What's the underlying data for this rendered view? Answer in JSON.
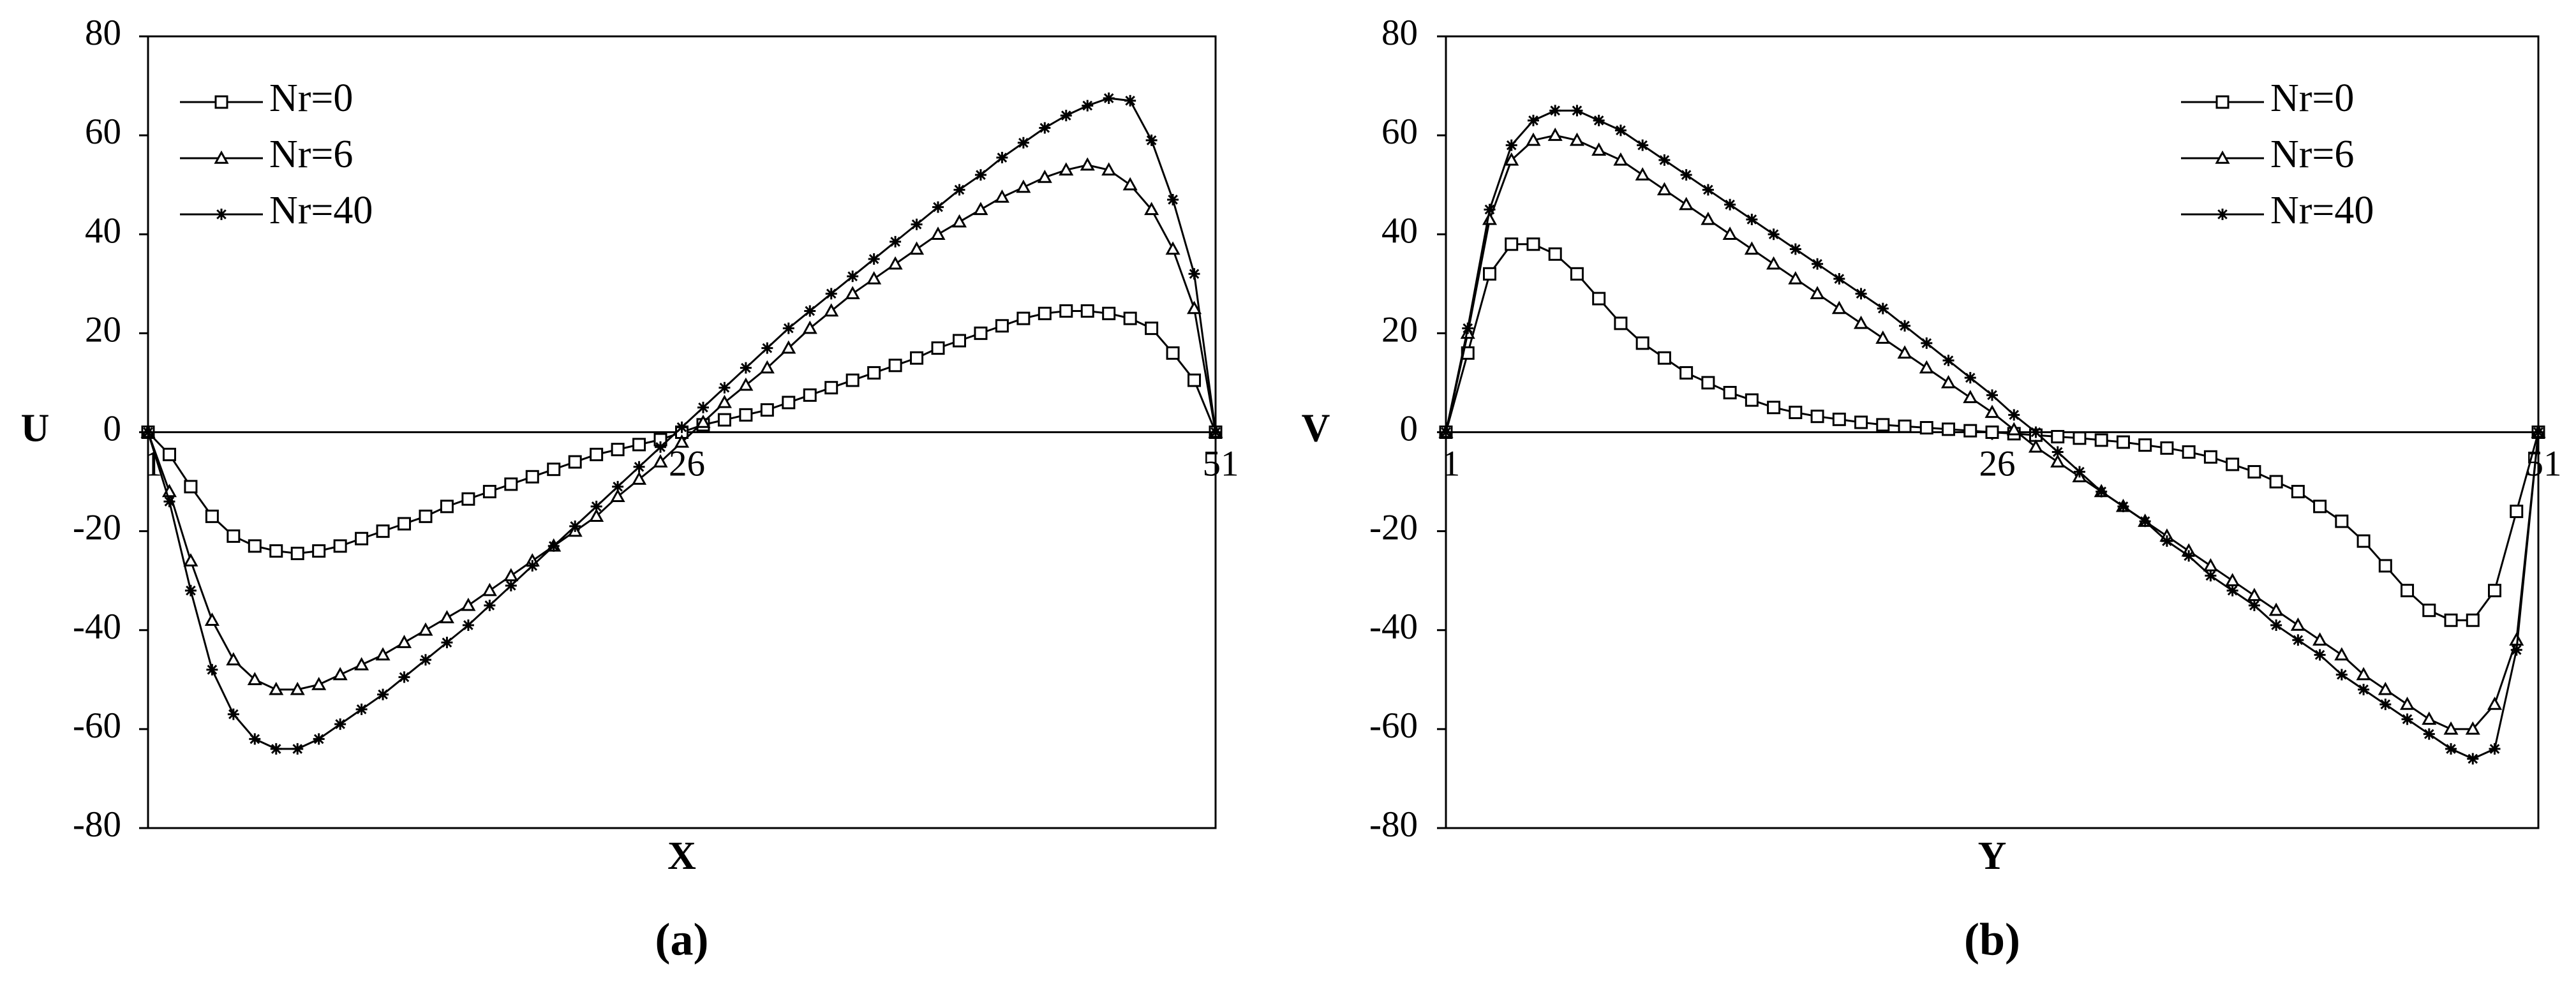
{
  "chart_data": [
    {
      "type": "line",
      "y_label": "U",
      "x_label": "X",
      "caption": "(a)",
      "x": [
        1,
        2,
        3,
        4,
        5,
        6,
        7,
        8,
        9,
        10,
        11,
        12,
        13,
        14,
        15,
        16,
        17,
        18,
        19,
        20,
        21,
        22,
        23,
        24,
        25,
        26,
        27,
        28,
        29,
        30,
        31,
        32,
        33,
        34,
        35,
        36,
        37,
        38,
        39,
        40,
        41,
        42,
        43,
        44,
        45,
        46,
        47,
        48,
        49,
        50,
        51
      ],
      "xlim": [
        1,
        51
      ],
      "xticks": [
        1,
        26,
        51
      ],
      "ylim": [
        -80,
        80
      ],
      "yticks": [
        -80,
        -60,
        -40,
        -20,
        0,
        20,
        40,
        60,
        80
      ],
      "legend": "upper left",
      "series": [
        {
          "name": "Nr=0",
          "color": "#000000",
          "marker": "square",
          "values": [
            0,
            -4.5,
            -11,
            -17,
            -21,
            -23,
            -24,
            -24.5,
            -24,
            -23,
            -21.5,
            -20,
            -18.5,
            -17,
            -15,
            -13.5,
            -12,
            -10.5,
            -9,
            -7.5,
            -6,
            -4.5,
            -3.5,
            -2.5,
            -1.5,
            0,
            1.5,
            2.5,
            3.5,
            4.5,
            6,
            7.5,
            9,
            10.5,
            12,
            13.5,
            15,
            17,
            18.5,
            20,
            21.5,
            23,
            24,
            24.5,
            24.5,
            24,
            23,
            21,
            16,
            10.5,
            0
          ]
        },
        {
          "name": "Nr=6",
          "color": "#000000",
          "marker": "triangle",
          "values": [
            0,
            -12,
            -26,
            -38,
            -46,
            -50,
            -52,
            -52,
            -51,
            -49,
            -47,
            -45,
            -42.5,
            -40,
            -37.5,
            -35,
            -32,
            -29,
            -26,
            -23,
            -20,
            -17,
            -13,
            -9.5,
            -6,
            -2,
            2,
            6,
            9.5,
            13,
            17,
            21,
            24.5,
            28,
            31,
            34,
            37,
            40,
            42.5,
            45,
            47.5,
            49.5,
            51.5,
            53,
            54,
            53,
            50,
            45,
            37,
            25,
            0
          ]
        },
        {
          "name": "Nr=40",
          "color": "#000000",
          "marker": "asterisk",
          "values": [
            0,
            -14,
            -32,
            -48,
            -57,
            -62,
            -64,
            -64,
            -62,
            -59,
            -56,
            -53,
            -49.5,
            -46,
            -42.5,
            -39,
            -35,
            -31,
            -27,
            -23,
            -19,
            -15,
            -11,
            -7,
            -3,
            1,
            5,
            9,
            13,
            17,
            21,
            24.5,
            28,
            31.5,
            35,
            38.5,
            42,
            45.5,
            49,
            52,
            55.5,
            58.5,
            61.5,
            64,
            66,
            67.5,
            67,
            59,
            47,
            32,
            0
          ]
        }
      ]
    },
    {
      "type": "line",
      "y_label": "V",
      "x_label": "Y",
      "caption": "(b)",
      "x": [
        1,
        2,
        3,
        4,
        5,
        6,
        7,
        8,
        9,
        10,
        11,
        12,
        13,
        14,
        15,
        16,
        17,
        18,
        19,
        20,
        21,
        22,
        23,
        24,
        25,
        26,
        27,
        28,
        29,
        30,
        31,
        32,
        33,
        34,
        35,
        36,
        37,
        38,
        39,
        40,
        41,
        42,
        43,
        44,
        45,
        46,
        47,
        48,
        49,
        50,
        51
      ],
      "xlim": [
        1,
        51
      ],
      "xticks": [
        1,
        26,
        51
      ],
      "ylim": [
        -80,
        80
      ],
      "yticks": [
        -80,
        -60,
        -40,
        -20,
        0,
        20,
        40,
        60,
        80
      ],
      "legend": "upper right",
      "series": [
        {
          "name": "Nr=0",
          "color": "#000000",
          "marker": "square",
          "values": [
            0,
            16,
            32,
            38,
            38,
            36,
            32,
            27,
            22,
            18,
            15,
            12,
            10,
            8,
            6.5,
            5,
            4,
            3.2,
            2.6,
            2,
            1.5,
            1.2,
            0.9,
            0.6,
            0.3,
            0,
            -0.3,
            -0.6,
            -0.9,
            -1.2,
            -1.6,
            -2,
            -2.6,
            -3.2,
            -4,
            -5,
            -6.5,
            -8,
            -10,
            -12,
            -15,
            -18,
            -22,
            -27,
            -32,
            -36,
            -38,
            -38,
            -32,
            -16,
            0
          ]
        },
        {
          "name": "Nr=6",
          "color": "#000000",
          "marker": "triangle",
          "values": [
            0,
            20,
            43,
            55,
            59,
            60,
            59,
            57,
            55,
            52,
            49,
            46,
            43,
            40,
            37,
            34,
            31,
            28,
            25,
            22,
            19,
            16,
            13,
            10,
            7,
            4,
            0.5,
            -3,
            -6,
            -9,
            -12,
            -15,
            -18,
            -21,
            -24,
            -27,
            -30,
            -33,
            -36,
            -39,
            -42,
            -45,
            -49,
            -52,
            -55,
            -58,
            -60,
            -60,
            -55,
            -42,
            0
          ]
        },
        {
          "name": "Nr=40",
          "color": "#000000",
          "marker": "asterisk",
          "values": [
            0,
            21,
            45,
            58,
            63,
            65,
            65,
            63,
            61,
            58,
            55,
            52,
            49,
            46,
            43,
            40,
            37,
            34,
            31,
            28,
            25,
            21.5,
            18,
            14.5,
            11,
            7.5,
            3.5,
            0,
            -4,
            -8,
            -12,
            -15,
            -18,
            -22,
            -25,
            -29,
            -32,
            -35,
            -39,
            -42,
            -45,
            -49,
            -52,
            -55,
            -58,
            -61,
            -64,
            -66,
            -64,
            -44,
            0
          ]
        }
      ]
    }
  ]
}
